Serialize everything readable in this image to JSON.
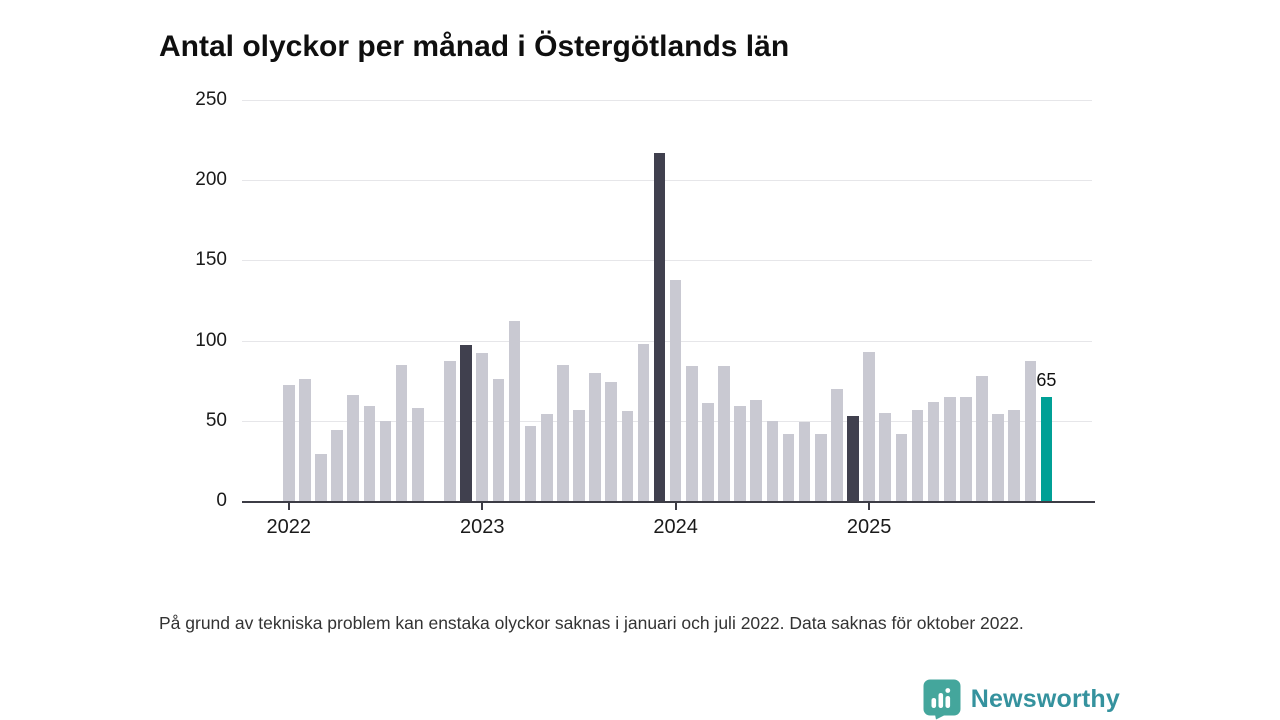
{
  "page": {
    "title": "Antal olyckor per månad i Östergötlands län",
    "note": "På grund av tekniska problem kan enstaka olyckor saknas i januari och juli 2022. Data saknas för oktober 2022.",
    "branding": {
      "logo_text": "Newsworthy",
      "logo_icon": "bar-chart-speech-bubble-icon"
    }
  },
  "colors": {
    "bar_default": "#c9c9d2",
    "bar_december": "#40404e",
    "bar_latest": "#00a096",
    "axis": "#3c3c45",
    "gridline": "#e6e6e9",
    "tick_text": "#1a1a1a",
    "note_text": "#333333",
    "logo_icon_teal": "#44a69c",
    "logo_text_teal": "#35929e"
  },
  "chart_data": {
    "type": "bar",
    "title": "Antal olyckor per månad i Östergötlands län",
    "xlabel": "",
    "ylabel": "",
    "ylim": [
      0,
      250
    ],
    "yticks": [
      0,
      50,
      100,
      150,
      200,
      250
    ],
    "grid": true,
    "legend": "none",
    "x_tick_labels": [
      "2022",
      "2023",
      "2024",
      "2025"
    ],
    "missing_months": [
      "2022-10"
    ],
    "annotation": {
      "month": "2025-12",
      "label": "65"
    },
    "months": [
      {
        "month": "2022-01",
        "value": 72,
        "style": "default"
      },
      {
        "month": "2022-02",
        "value": 76,
        "style": "default"
      },
      {
        "month": "2022-03",
        "value": 29,
        "style": "default"
      },
      {
        "month": "2022-04",
        "value": 44,
        "style": "default"
      },
      {
        "month": "2022-05",
        "value": 66,
        "style": "default"
      },
      {
        "month": "2022-06",
        "value": 59,
        "style": "default"
      },
      {
        "month": "2022-07",
        "value": 50,
        "style": "default"
      },
      {
        "month": "2022-08",
        "value": 85,
        "style": "default"
      },
      {
        "month": "2022-09",
        "value": 58,
        "style": "default"
      },
      {
        "month": "2022-10",
        "value": null,
        "style": "default"
      },
      {
        "month": "2022-11",
        "value": 87,
        "style": "default"
      },
      {
        "month": "2022-12",
        "value": 97,
        "style": "december"
      },
      {
        "month": "2023-01",
        "value": 92,
        "style": "default"
      },
      {
        "month": "2023-02",
        "value": 76,
        "style": "default"
      },
      {
        "month": "2023-03",
        "value": 112,
        "style": "default"
      },
      {
        "month": "2023-04",
        "value": 47,
        "style": "default"
      },
      {
        "month": "2023-05",
        "value": 54,
        "style": "default"
      },
      {
        "month": "2023-06",
        "value": 85,
        "style": "default"
      },
      {
        "month": "2023-07",
        "value": 57,
        "style": "default"
      },
      {
        "month": "2023-08",
        "value": 80,
        "style": "default"
      },
      {
        "month": "2023-09",
        "value": 74,
        "style": "default"
      },
      {
        "month": "2023-10",
        "value": 56,
        "style": "default"
      },
      {
        "month": "2023-11",
        "value": 98,
        "style": "default"
      },
      {
        "month": "2023-12",
        "value": 217,
        "style": "december"
      },
      {
        "month": "2024-01",
        "value": 138,
        "style": "default"
      },
      {
        "month": "2024-02",
        "value": 84,
        "style": "default"
      },
      {
        "month": "2024-03",
        "value": 61,
        "style": "default"
      },
      {
        "month": "2024-04",
        "value": 84,
        "style": "default"
      },
      {
        "month": "2024-05",
        "value": 59,
        "style": "default"
      },
      {
        "month": "2024-06",
        "value": 63,
        "style": "default"
      },
      {
        "month": "2024-07",
        "value": 50,
        "style": "default"
      },
      {
        "month": "2024-08",
        "value": 42,
        "style": "default"
      },
      {
        "month": "2024-09",
        "value": 49,
        "style": "default"
      },
      {
        "month": "2024-10",
        "value": 42,
        "style": "default"
      },
      {
        "month": "2024-11",
        "value": 70,
        "style": "default"
      },
      {
        "month": "2024-12",
        "value": 53,
        "style": "december"
      },
      {
        "month": "2025-01",
        "value": 93,
        "style": "default"
      },
      {
        "month": "2025-02",
        "value": 55,
        "style": "default"
      },
      {
        "month": "2025-03",
        "value": 42,
        "style": "default"
      },
      {
        "month": "2025-04",
        "value": 57,
        "style": "default"
      },
      {
        "month": "2025-05",
        "value": 62,
        "style": "default"
      },
      {
        "month": "2025-06",
        "value": 65,
        "style": "default"
      },
      {
        "month": "2025-07",
        "value": 65,
        "style": "default"
      },
      {
        "month": "2025-08",
        "value": 78,
        "style": "default"
      },
      {
        "month": "2025-09",
        "value": 54,
        "style": "default"
      },
      {
        "month": "2025-10",
        "value": 57,
        "style": "default"
      },
      {
        "month": "2025-11",
        "value": 87,
        "style": "default"
      },
      {
        "month": "2025-12",
        "value": 65,
        "style": "latest"
      }
    ]
  }
}
